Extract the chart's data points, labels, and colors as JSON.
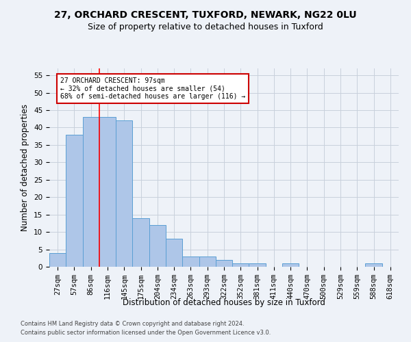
{
  "title1": "27, ORCHARD CRESCENT, TUXFORD, NEWARK, NG22 0LU",
  "title2": "Size of property relative to detached houses in Tuxford",
  "xlabel": "Distribution of detached houses by size in Tuxford",
  "ylabel": "Number of detached properties",
  "bar_labels": [
    "27sqm",
    "57sqm",
    "86sqm",
    "116sqm",
    "145sqm",
    "175sqm",
    "204sqm",
    "234sqm",
    "263sqm",
    "293sqm",
    "322sqm",
    "352sqm",
    "381sqm",
    "411sqm",
    "440sqm",
    "470sqm",
    "500sqm",
    "529sqm",
    "559sqm",
    "588sqm",
    "618sqm"
  ],
  "bar_values": [
    4,
    38,
    43,
    43,
    42,
    14,
    12,
    8,
    3,
    3,
    2,
    1,
    1,
    0,
    1,
    0,
    0,
    0,
    0,
    1,
    0
  ],
  "bar_color": "#aec6e8",
  "bar_edge_color": "#5a9fd4",
  "bar_edge_width": 0.7,
  "grid_color": "#c8d0dc",
  "background_color": "#eef2f8",
  "ylim": [
    0,
    57
  ],
  "yticks": [
    0,
    5,
    10,
    15,
    20,
    25,
    30,
    35,
    40,
    45,
    50,
    55
  ],
  "annotation_text": "27 ORCHARD CRESCENT: 97sqm\n← 32% of detached houses are smaller (54)\n68% of semi-detached houses are larger (116) →",
  "annotation_box_color": "#ffffff",
  "annotation_box_edge": "#cc0000",
  "footer1": "Contains HM Land Registry data © Crown copyright and database right 2024.",
  "footer2": "Contains public sector information licensed under the Open Government Licence v3.0.",
  "title1_fontsize": 10,
  "title2_fontsize": 9,
  "tick_fontsize": 7.5,
  "ylabel_fontsize": 8.5,
  "xlabel_fontsize": 8.5,
  "annot_fontsize": 7,
  "footer_fontsize": 6
}
